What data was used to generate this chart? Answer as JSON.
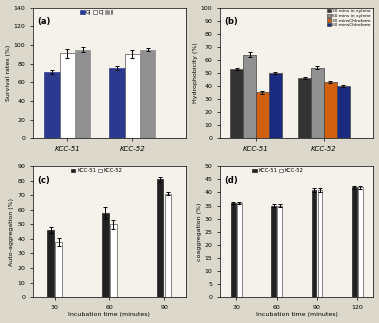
{
  "panel_a": {
    "title": "(a)",
    "ylabel": "Survival rates (%)",
    "groups": [
      "KCC-51",
      "KCC-52"
    ],
    "series": [
      "GJ",
      "DJ",
      "IJ"
    ],
    "colors": [
      "#2b3a8f",
      "#ffffff",
      "#909090"
    ],
    "edge_colors": [
      "#2b3a8f",
      "#555555",
      "#909090"
    ],
    "values": [
      [
        71,
        91,
        95
      ],
      [
        75,
        90,
        95
      ]
    ],
    "errors": [
      [
        2,
        5,
        3
      ],
      [
        2,
        4,
        2
      ]
    ],
    "ylim": [
      0,
      140
    ],
    "yticks": [
      0,
      20,
      40,
      60,
      80,
      100,
      120,
      140
    ]
  },
  "panel_b": {
    "title": "(b)",
    "ylabel": "Hydrophobicity (%)",
    "groups": [
      "KCC-51",
      "KCC-52"
    ],
    "series": [
      "30 mins in xylene",
      "60 mins in xylene",
      "30 minsChlroform",
      "60 minsChlroform"
    ],
    "colors": [
      "#333333",
      "#909090",
      "#d06010",
      "#1a2a7f"
    ],
    "values": [
      [
        53,
        64,
        35,
        50
      ],
      [
        46,
        54,
        43,
        40
      ]
    ],
    "errors": [
      [
        1,
        2,
        1,
        1
      ],
      [
        1,
        1,
        1,
        1
      ]
    ],
    "ylim": [
      0,
      100
    ],
    "yticks": [
      0,
      10,
      20,
      30,
      40,
      50,
      60,
      70,
      80,
      90,
      100
    ]
  },
  "panel_c": {
    "title": "(c)",
    "ylabel": "Auto-aggregation (%)",
    "xlabel": "Incubation time (minutes)",
    "series": [
      "KCC-51",
      "KCC-52"
    ],
    "colors": [
      "#222222",
      "#ffffff"
    ],
    "edge_colors": [
      "#222222",
      "#555555"
    ],
    "xticks": [
      30,
      60,
      90
    ],
    "values_51": [
      46,
      58,
      81
    ],
    "values_52": [
      38,
      50,
      71
    ],
    "errors_51": [
      2,
      4,
      2
    ],
    "errors_52": [
      3,
      3,
      1
    ],
    "ylim": [
      0,
      90
    ],
    "yticks": [
      0,
      10,
      20,
      30,
      40,
      50,
      60,
      70,
      80,
      90
    ]
  },
  "panel_d": {
    "title": "(d)",
    "ylabel": "coaggregation (%)",
    "xlabel": "Incubation time (minutes)",
    "series": [
      "KCC-51",
      "KCC-52"
    ],
    "colors": [
      "#222222",
      "#ffffff"
    ],
    "edge_colors": [
      "#222222",
      "#555555"
    ],
    "xticks": [
      30,
      60,
      90,
      120
    ],
    "values_51": [
      36,
      35,
      41,
      42
    ],
    "values_52": [
      36,
      35,
      41,
      42
    ],
    "errors_51": [
      0.5,
      0.5,
      0.8,
      0.5
    ],
    "errors_52": [
      0.5,
      0.5,
      0.8,
      0.5
    ],
    "ylim": [
      0,
      50
    ],
    "yticks": [
      0,
      5,
      10,
      15,
      20,
      25,
      30,
      35,
      40,
      45,
      50
    ]
  },
  "bg_color": "#f5f2eb",
  "fig_bg": "#ddd8cc"
}
